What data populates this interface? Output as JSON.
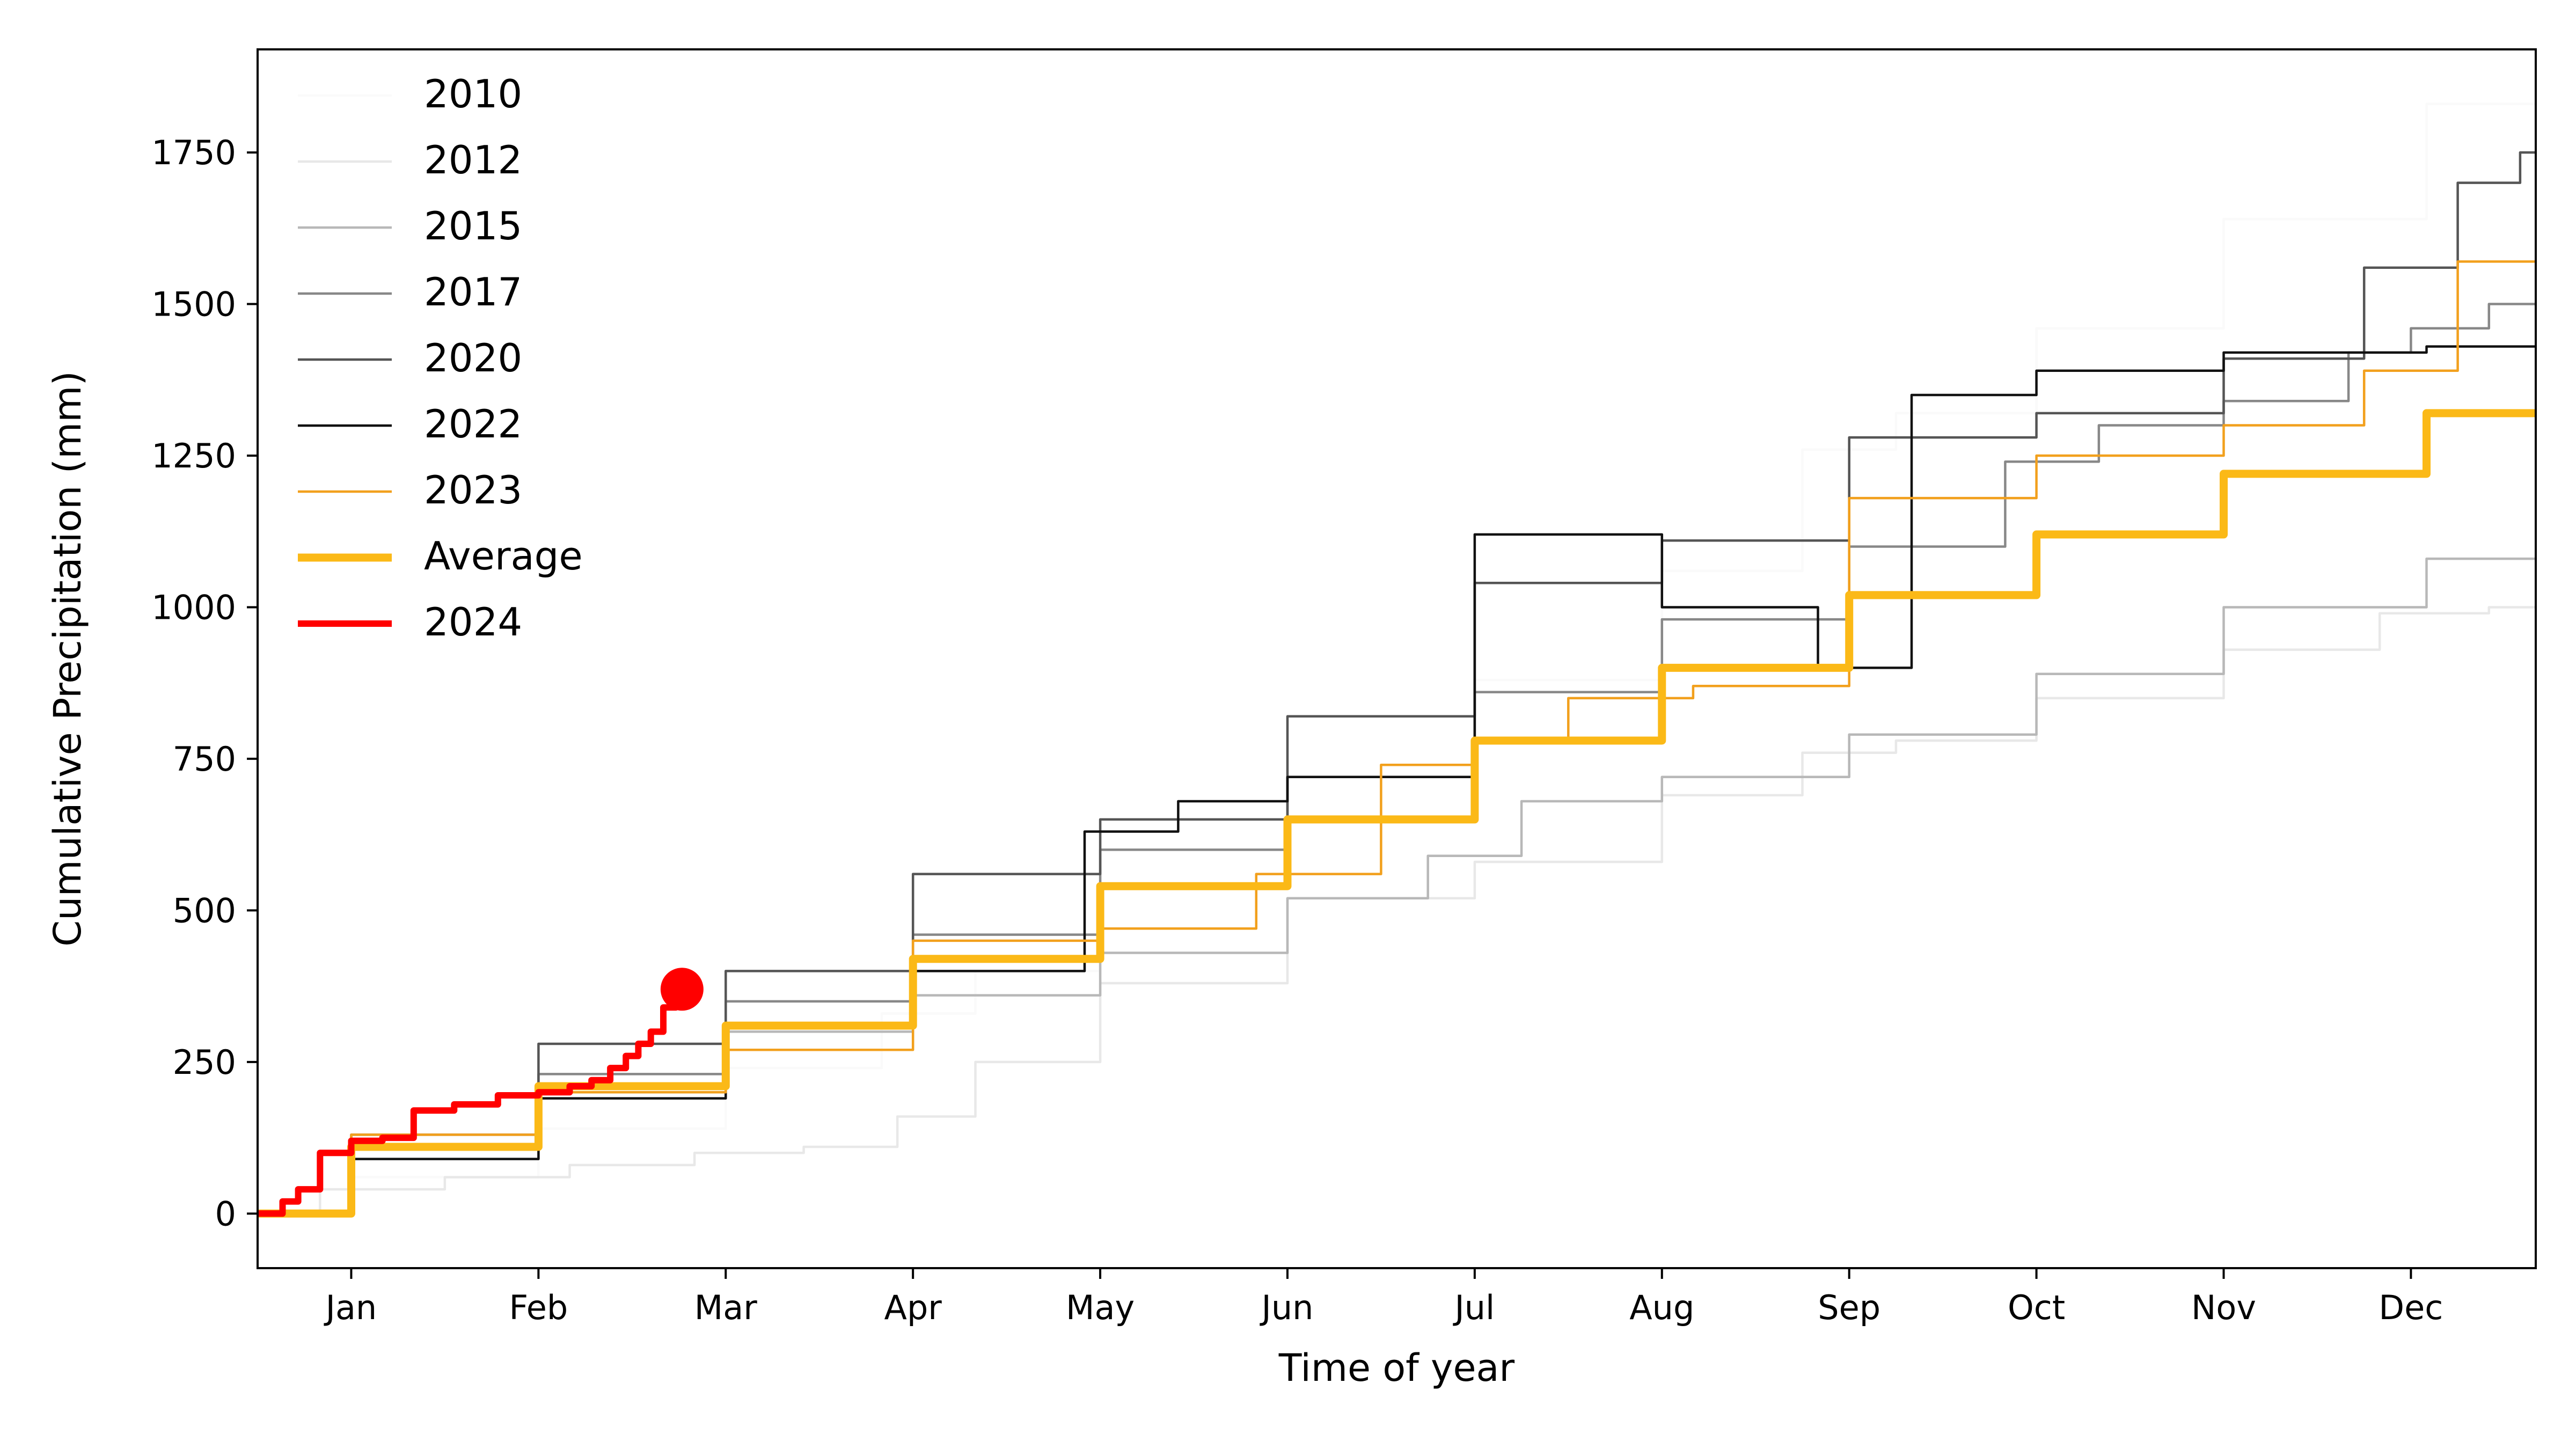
{
  "chart_data": {
    "type": "line",
    "title": "",
    "xlabel": "Time of year",
    "ylabel": "Cumulative Precipitation (mm)",
    "xlim": [
      0,
      365
    ],
    "ylim": [
      -90,
      1920
    ],
    "grid": false,
    "legend_placement": "top-left",
    "x_ticks": [
      {
        "label": "Jan",
        "day": 15
      },
      {
        "label": "Feb",
        "day": 45
      },
      {
        "label": "Mar",
        "day": 75
      },
      {
        "label": "Apr",
        "day": 105
      },
      {
        "label": "May",
        "day": 135
      },
      {
        "label": "Jun",
        "day": 165
      },
      {
        "label": "Jul",
        "day": 195
      },
      {
        "label": "Aug",
        "day": 225
      },
      {
        "label": "Sep",
        "day": 255
      },
      {
        "label": "Oct",
        "day": 285
      },
      {
        "label": "Nov",
        "day": 315
      },
      {
        "label": "Dec",
        "day": 345
      }
    ],
    "y_ticks": [
      0,
      250,
      500,
      750,
      1000,
      1250,
      1500,
      1750
    ],
    "series": [
      {
        "name": "2010",
        "color": "#fafafa",
        "width": 1.5,
        "x": [
          0,
          30,
          60,
          90,
          110,
          120,
          150,
          180,
          210,
          240,
          255,
          270,
          300,
          330,
          365
        ],
        "y": [
          0,
          60,
          140,
          240,
          330,
          400,
          540,
          720,
          880,
          1060,
          1260,
          1320,
          1460,
          1640,
          1830
        ]
      },
      {
        "name": "2012",
        "color": "#e8e8e8",
        "width": 1.5,
        "x": [
          0,
          20,
          40,
          60,
          80,
          95,
          110,
          120,
          150,
          180,
          210,
          240,
          255,
          270,
          300,
          330,
          350,
          365
        ],
        "y": [
          0,
          40,
          60,
          80,
          100,
          110,
          160,
          250,
          380,
          520,
          580,
          690,
          760,
          780,
          850,
          930,
          990,
          1000
        ]
      },
      {
        "name": "2015",
        "color": "#b8b8b8",
        "width": 1.5,
        "x": [
          0,
          30,
          60,
          90,
          120,
          150,
          180,
          195,
          210,
          240,
          270,
          300,
          330,
          365
        ],
        "y": [
          0,
          110,
          200,
          300,
          360,
          430,
          520,
          590,
          680,
          720,
          790,
          890,
          1000,
          1080
        ]
      },
      {
        "name": "2017",
        "color": "#888888",
        "width": 1.5,
        "x": [
          0,
          30,
          60,
          90,
          120,
          150,
          180,
          210,
          240,
          270,
          290,
          300,
          330,
          340,
          350,
          365
        ],
        "y": [
          0,
          110,
          230,
          350,
          460,
          600,
          720,
          860,
          980,
          1100,
          1240,
          1300,
          1340,
          1420,
          1460,
          1500
        ]
      },
      {
        "name": "2020",
        "color": "#555555",
        "width": 1.5,
        "x": [
          0,
          30,
          60,
          90,
          120,
          150,
          180,
          210,
          240,
          270,
          300,
          330,
          345,
          360,
          365
        ],
        "y": [
          0,
          130,
          280,
          400,
          560,
          650,
          820,
          1040,
          1110,
          1280,
          1320,
          1410,
          1560,
          1700,
          1750
        ]
      },
      {
        "name": "2022",
        "color": "#111111",
        "width": 1.5,
        "x": [
          0,
          30,
          60,
          90,
          120,
          145,
          150,
          180,
          210,
          240,
          260,
          270,
          300,
          330,
          365
        ],
        "y": [
          0,
          90,
          190,
          310,
          400,
          630,
          680,
          720,
          1120,
          1000,
          900,
          1350,
          1390,
          1420,
          1430
        ]
      },
      {
        "name": "2023",
        "color": "#f2a01d",
        "width": 1.5,
        "x": [
          0,
          30,
          60,
          90,
          120,
          150,
          170,
          190,
          200,
          220,
          240,
          270,
          300,
          330,
          345,
          360,
          365
        ],
        "y": [
          0,
          130,
          200,
          270,
          450,
          470,
          560,
          740,
          780,
          850,
          870,
          1180,
          1250,
          1300,
          1390,
          1570,
          1570
        ]
      },
      {
        "name": "Average",
        "color": "#fbb917",
        "width": 5,
        "x": [
          0,
          30,
          60,
          90,
          120,
          150,
          180,
          210,
          240,
          270,
          300,
          330,
          365
        ],
        "y": [
          0,
          110,
          210,
          310,
          420,
          540,
          650,
          780,
          900,
          1020,
          1120,
          1220,
          1320
        ]
      },
      {
        "name": "2024",
        "color": "#ff0000",
        "width": 4,
        "x": [
          0,
          3,
          5,
          8,
          12,
          18,
          22,
          28,
          35,
          42,
          48,
          52,
          55,
          58,
          60,
          62,
          64,
          66,
          68
        ],
        "y": [
          0,
          0,
          20,
          40,
          100,
          120,
          125,
          170,
          180,
          195,
          200,
          210,
          220,
          240,
          260,
          280,
          300,
          340,
          370
        ]
      }
    ],
    "endpoint": {
      "series": "2024",
      "x": 68,
      "y": 370,
      "color": "#ff0000"
    }
  }
}
